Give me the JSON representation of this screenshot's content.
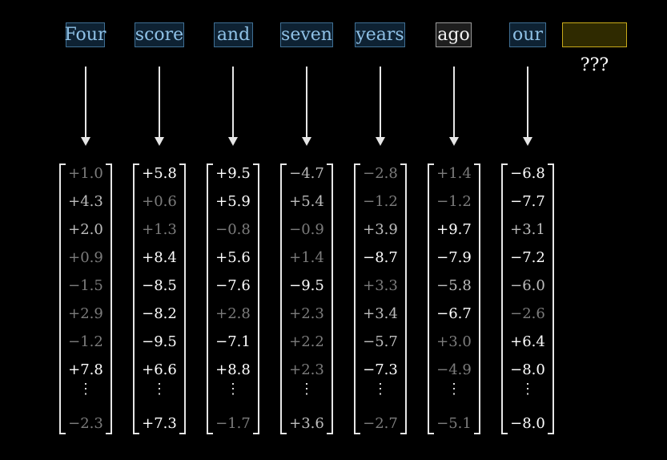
{
  "tokens": [
    {
      "text": "Four",
      "state": "normal"
    },
    {
      "text": "score",
      "state": "normal"
    },
    {
      "text": "and",
      "state": "normal"
    },
    {
      "text": "seven",
      "state": "normal"
    },
    {
      "text": "years",
      "state": "normal"
    },
    {
      "text": "ago",
      "state": "highlighted"
    },
    {
      "text": "our",
      "state": "normal"
    }
  ],
  "next_token": {
    "text": "",
    "label": "???"
  },
  "colors": {
    "token_text": "#8fc1e6",
    "token_border": "#3f6f94",
    "highlight_text": "#f2f2f2",
    "blank_border": "#c8aa1a",
    "blank_fill": "#2f2a00",
    "bright_value": "#ffffff",
    "mid_value": "#bdbdbd",
    "dim_value": "#7c7c7c"
  },
  "vectors": [
    {
      "values": [
        "+1.0",
        "+4.3",
        "+2.0",
        "+0.9",
        "−1.5",
        "+2.9",
        "−1.2",
        "+7.8"
      ],
      "last": "−2.3",
      "shade": [
        "dim",
        "mid",
        "mid",
        "dim",
        "dim",
        "dim",
        "dim",
        "bright"
      ],
      "last_shade": "dim"
    },
    {
      "values": [
        "+5.8",
        "+0.6",
        "+1.3",
        "+8.4",
        "−8.5",
        "−8.2",
        "−9.5",
        "+6.6"
      ],
      "last": "+7.3",
      "shade": [
        "bright",
        "dim",
        "dim",
        "bright",
        "bright",
        "bright",
        "bright",
        "bright"
      ],
      "last_shade": "bright"
    },
    {
      "values": [
        "+9.5",
        "+5.9",
        "−0.8",
        "+5.6",
        "−7.6",
        "+2.8",
        "−7.1",
        "+8.8"
      ],
      "last": "−1.7",
      "shade": [
        "bright",
        "bright",
        "dim",
        "bright",
        "bright",
        "dim",
        "bright",
        "bright"
      ],
      "last_shade": "dim"
    },
    {
      "values": [
        "−4.7",
        "+5.4",
        "−0.9",
        "+1.4",
        "−9.5",
        "+2.3",
        "+2.2",
        "+2.3"
      ],
      "last": "+3.6",
      "shade": [
        "mid",
        "mid",
        "dim",
        "dim",
        "bright",
        "dim",
        "dim",
        "dim"
      ],
      "last_shade": "mid"
    },
    {
      "values": [
        "−2.8",
        "−1.2",
        "+3.9",
        "−8.7",
        "+3.3",
        "+3.4",
        "−5.7",
        "−7.3"
      ],
      "last": "−2.7",
      "shade": [
        "dim",
        "dim",
        "mid",
        "bright",
        "dim",
        "mid",
        "mid",
        "bright"
      ],
      "last_shade": "dim"
    },
    {
      "values": [
        "+1.4",
        "−1.2",
        "+9.7",
        "−7.9",
        "−5.8",
        "−6.7",
        "+3.0",
        "−4.9"
      ],
      "last": "−5.1",
      "shade": [
        "dim",
        "dim",
        "bright",
        "bright",
        "mid",
        "bright",
        "dim",
        "dim"
      ],
      "last_shade": "dim"
    },
    {
      "values": [
        "−6.8",
        "−7.7",
        "+3.1",
        "−7.2",
        "−6.0",
        "−2.6",
        "+6.4",
        "−8.0"
      ],
      "last": "−8.0",
      "shade": [
        "bright",
        "bright",
        "mid",
        "bright",
        "mid",
        "dim",
        "bright",
        "bright"
      ],
      "last_shade": "bright"
    }
  ],
  "ellipsis": "⋮"
}
